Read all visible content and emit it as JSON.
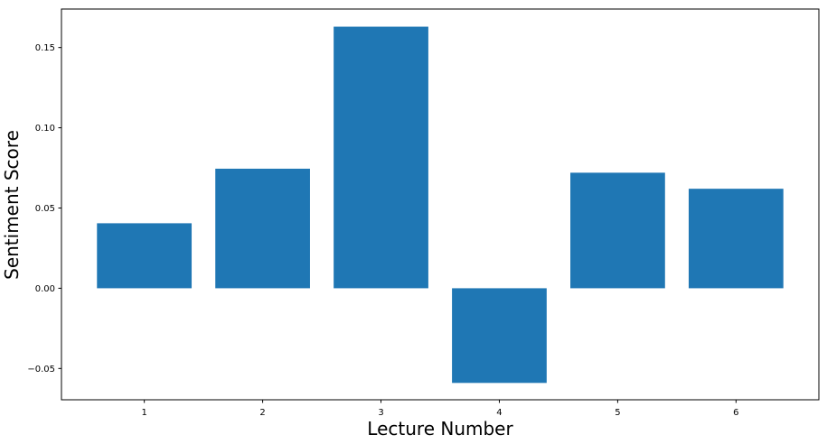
{
  "chart_data": {
    "type": "bar",
    "title": "",
    "xlabel": "Lecture Number",
    "ylabel": "Sentiment Score",
    "categories": [
      "1",
      "2",
      "3",
      "4",
      "5",
      "6"
    ],
    "x": [
      1,
      2,
      3,
      4,
      5,
      6
    ],
    "values": [
      0.0405,
      0.0745,
      0.163,
      -0.059,
      0.072,
      0.062
    ],
    "xlim": [
      0.3,
      6.7
    ],
    "ylim": [
      -0.0695,
      0.174
    ],
    "yticks": [
      -0.05,
      0.0,
      0.05,
      0.1,
      0.15
    ],
    "ytick_labels": [
      "−0.05",
      "0.00",
      "0.05",
      "0.10",
      "0.15"
    ],
    "bar_color": "#1f77b4",
    "grid": false,
    "legend": "none"
  }
}
